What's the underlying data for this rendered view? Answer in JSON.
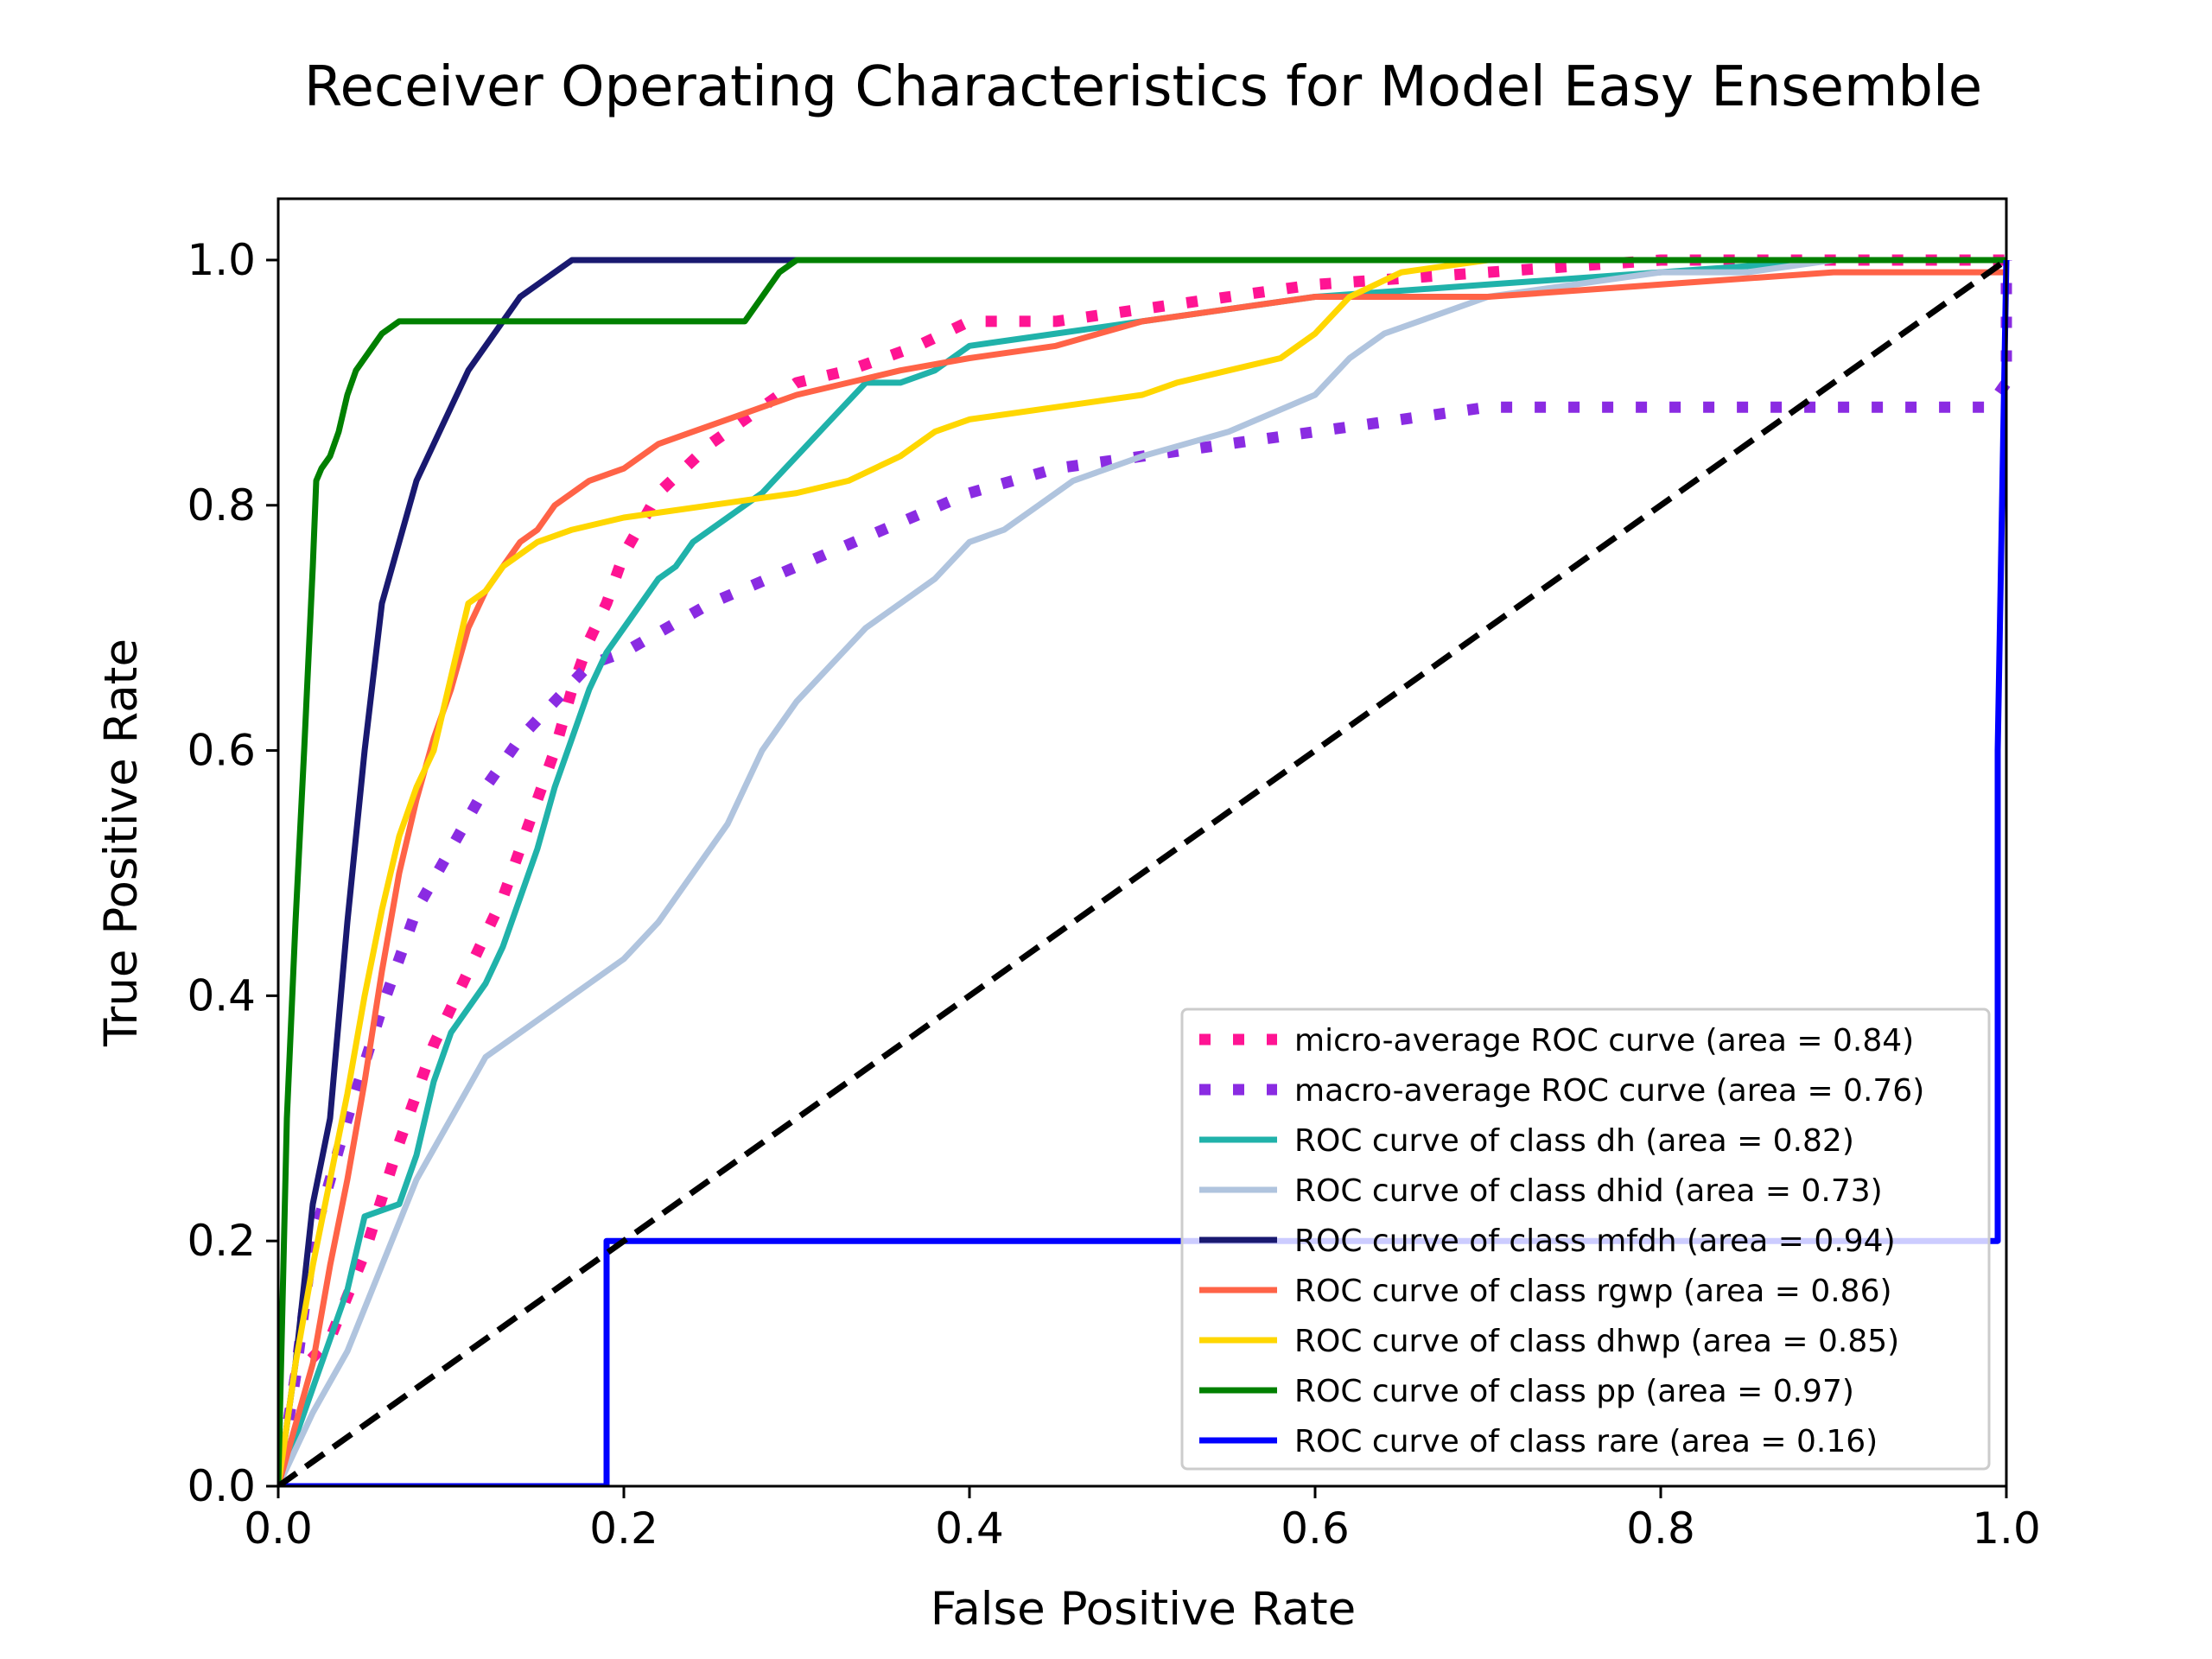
{
  "chart_data": {
    "type": "line",
    "title": "Receiver Operating Characteristics for Model Easy Ensemble",
    "xlabel": "False Positive Rate",
    "ylabel": "True Positive Rate",
    "xlim": [
      0.0,
      1.0
    ],
    "ylim": [
      0.0,
      1.05
    ],
    "xticks": [
      "0.0",
      "0.2",
      "0.4",
      "0.6",
      "0.8",
      "1.0"
    ],
    "yticks": [
      "0.0",
      "0.2",
      "0.4",
      "0.6",
      "0.8",
      "1.0"
    ],
    "grid": false,
    "legend_position": "lower-right",
    "series": [
      {
        "name": "micro-average ROC curve (area = 0.84)",
        "color": "#ff1493",
        "style": "dotted",
        "width": 13,
        "x": [
          0.0,
          0.01,
          0.03,
          0.05,
          0.07,
          0.09,
          0.11,
          0.13,
          0.15,
          0.16,
          0.17,
          0.18,
          0.19,
          0.2,
          0.22,
          0.25,
          0.28,
          0.3,
          0.33,
          0.37,
          0.4,
          0.45,
          0.5,
          0.55,
          0.6,
          0.7,
          0.8,
          0.9,
          1.0
        ],
        "y": [
          0.0,
          0.09,
          0.12,
          0.19,
          0.28,
          0.36,
          0.42,
          0.48,
          0.56,
          0.6,
          0.65,
          0.69,
          0.72,
          0.76,
          0.81,
          0.85,
          0.88,
          0.9,
          0.91,
          0.93,
          0.95,
          0.95,
          0.96,
          0.97,
          0.98,
          0.99,
          1.0,
          1.0,
          1.0
        ]
      },
      {
        "name": "macro-average ROC curve (area = 0.76)",
        "color": "#8a2be2",
        "style": "dotted",
        "width": 13,
        "x": [
          0.0,
          0.01,
          0.02,
          0.04,
          0.06,
          0.08,
          0.1,
          0.12,
          0.14,
          0.16,
          0.18,
          0.2,
          0.25,
          0.3,
          0.35,
          0.4,
          0.45,
          0.5,
          0.55,
          0.6,
          0.65,
          0.7,
          0.8,
          0.9,
          0.99,
          1.0,
          1.0,
          1.0
        ],
        "y": [
          0.0,
          0.09,
          0.2,
          0.3,
          0.39,
          0.47,
          0.52,
          0.57,
          0.61,
          0.64,
          0.67,
          0.68,
          0.72,
          0.75,
          0.78,
          0.81,
          0.83,
          0.84,
          0.85,
          0.86,
          0.87,
          0.88,
          0.88,
          0.88,
          0.88,
          0.9,
          0.95,
          1.0
        ]
      },
      {
        "name": "ROC curve of class dh (area = 0.82)",
        "color": "#20b2aa",
        "style": "solid",
        "width": 7,
        "x": [
          0.0,
          0.02,
          0.04,
          0.05,
          0.07,
          0.08,
          0.09,
          0.1,
          0.11,
          0.12,
          0.13,
          0.14,
          0.15,
          0.16,
          0.17,
          0.18,
          0.19,
          0.2,
          0.21,
          0.22,
          0.23,
          0.24,
          0.26,
          0.28,
          0.3,
          0.32,
          0.34,
          0.36,
          0.38,
          0.4,
          0.45,
          0.5,
          0.55,
          0.6,
          0.7,
          0.8,
          0.9,
          1.0
        ],
        "y": [
          0.0,
          0.08,
          0.16,
          0.22,
          0.23,
          0.27,
          0.33,
          0.37,
          0.39,
          0.41,
          0.44,
          0.48,
          0.52,
          0.57,
          0.61,
          0.65,
          0.68,
          0.7,
          0.72,
          0.74,
          0.75,
          0.77,
          0.79,
          0.81,
          0.84,
          0.87,
          0.9,
          0.9,
          0.91,
          0.93,
          0.94,
          0.95,
          0.96,
          0.97,
          0.98,
          0.99,
          1.0,
          1.0
        ]
      },
      {
        "name": "ROC curve of class dhid (area = 0.73)",
        "color": "#b0c4de",
        "style": "solid",
        "width": 7,
        "x": [
          0.0,
          0.02,
          0.04,
          0.06,
          0.08,
          0.1,
          0.12,
          0.14,
          0.16,
          0.18,
          0.2,
          0.22,
          0.24,
          0.26,
          0.28,
          0.29,
          0.3,
          0.32,
          0.34,
          0.36,
          0.38,
          0.4,
          0.42,
          0.44,
          0.46,
          0.48,
          0.5,
          0.55,
          0.6,
          0.62,
          0.64,
          0.66,
          0.7,
          0.75,
          0.8,
          0.85,
          0.9,
          1.0
        ],
        "y": [
          0.0,
          0.06,
          0.11,
          0.18,
          0.25,
          0.3,
          0.35,
          0.37,
          0.39,
          0.41,
          0.43,
          0.46,
          0.5,
          0.54,
          0.6,
          0.62,
          0.64,
          0.67,
          0.7,
          0.72,
          0.74,
          0.77,
          0.78,
          0.8,
          0.82,
          0.83,
          0.84,
          0.86,
          0.89,
          0.92,
          0.94,
          0.95,
          0.97,
          0.98,
          0.99,
          0.99,
          1.0,
          1.0
        ]
      },
      {
        "name": "ROC curve of class mfdh (area = 0.94)",
        "color": "#191970",
        "style": "solid",
        "width": 7,
        "x": [
          0.0,
          0.01,
          0.02,
          0.03,
          0.04,
          0.05,
          0.06,
          0.07,
          0.08,
          0.09,
          0.1,
          0.11,
          0.12,
          0.13,
          0.14,
          0.15,
          0.16,
          0.17,
          0.19,
          0.21,
          0.25,
          0.3,
          0.4,
          0.6,
          0.8,
          1.0
        ],
        "y": [
          0.0,
          0.1,
          0.23,
          0.3,
          0.46,
          0.6,
          0.72,
          0.77,
          0.82,
          0.85,
          0.88,
          0.91,
          0.93,
          0.95,
          0.97,
          0.98,
          0.99,
          1.0,
          1.0,
          1.0,
          1.0,
          1.0,
          1.0,
          1.0,
          1.0,
          1.0
        ]
      },
      {
        "name": "ROC curve of class rgwp (area = 0.86)",
        "color": "#ff6347",
        "style": "solid",
        "width": 7,
        "x": [
          0.0,
          0.02,
          0.03,
          0.04,
          0.05,
          0.06,
          0.07,
          0.08,
          0.09,
          0.1,
          0.11,
          0.12,
          0.13,
          0.14,
          0.15,
          0.16,
          0.17,
          0.18,
          0.2,
          0.22,
          0.24,
          0.26,
          0.28,
          0.3,
          0.33,
          0.36,
          0.4,
          0.45,
          0.5,
          0.55,
          0.6,
          0.7,
          0.8,
          0.9,
          1.0
        ],
        "y": [
          0.0,
          0.1,
          0.18,
          0.25,
          0.33,
          0.42,
          0.5,
          0.56,
          0.61,
          0.65,
          0.7,
          0.73,
          0.75,
          0.77,
          0.78,
          0.8,
          0.81,
          0.82,
          0.83,
          0.85,
          0.86,
          0.87,
          0.88,
          0.89,
          0.9,
          0.91,
          0.92,
          0.93,
          0.95,
          0.96,
          0.97,
          0.97,
          0.98,
          0.99,
          0.99
        ]
      },
      {
        "name": "ROC curve of class dhwp (area = 0.85)",
        "color": "#ffd700",
        "style": "solid",
        "width": 7,
        "x": [
          0.0,
          0.01,
          0.02,
          0.03,
          0.04,
          0.05,
          0.06,
          0.07,
          0.08,
          0.09,
          0.1,
          0.11,
          0.12,
          0.13,
          0.15,
          0.17,
          0.2,
          0.25,
          0.3,
          0.33,
          0.36,
          0.38,
          0.4,
          0.45,
          0.5,
          0.52,
          0.55,
          0.58,
          0.6,
          0.62,
          0.65,
          0.7,
          0.8,
          1.0
        ],
        "y": [
          0.0,
          0.1,
          0.18,
          0.25,
          0.32,
          0.4,
          0.47,
          0.53,
          0.57,
          0.6,
          0.66,
          0.72,
          0.73,
          0.75,
          0.77,
          0.78,
          0.79,
          0.8,
          0.81,
          0.82,
          0.84,
          0.86,
          0.87,
          0.88,
          0.89,
          0.9,
          0.91,
          0.92,
          0.94,
          0.97,
          0.99,
          1.0,
          1.0,
          1.0
        ]
      },
      {
        "name": "ROC curve of class pp (area = 0.97)",
        "color": "#008000",
        "style": "solid",
        "width": 7,
        "x": [
          0.0,
          0.005,
          0.01,
          0.015,
          0.02,
          0.022,
          0.025,
          0.03,
          0.035,
          0.04,
          0.045,
          0.05,
          0.055,
          0.06,
          0.07,
          0.1,
          0.2,
          0.27,
          0.28,
          0.29,
          0.3,
          0.5,
          0.7,
          0.8,
          1.0
        ],
        "y": [
          0.0,
          0.3,
          0.46,
          0.6,
          0.75,
          0.82,
          0.83,
          0.84,
          0.86,
          0.89,
          0.91,
          0.92,
          0.93,
          0.94,
          0.95,
          0.95,
          0.95,
          0.95,
          0.97,
          0.99,
          1.0,
          1.0,
          1.0,
          1.0,
          1.0
        ]
      },
      {
        "name": "ROC curve of class rare (area = 0.16)",
        "color": "#0000ff",
        "style": "solid",
        "width": 7,
        "x": [
          0.0,
          0.19,
          0.19,
          0.5,
          0.8,
          0.995,
          0.995,
          1.0
        ],
        "y": [
          0.0,
          0.0,
          0.2,
          0.2,
          0.2,
          0.2,
          0.6,
          1.0
        ]
      },
      {
        "name": "",
        "color": "#000000",
        "style": "dashed",
        "width": 7,
        "x": [
          0.0,
          1.0
        ],
        "y": [
          0.0,
          1.0
        ]
      }
    ]
  }
}
